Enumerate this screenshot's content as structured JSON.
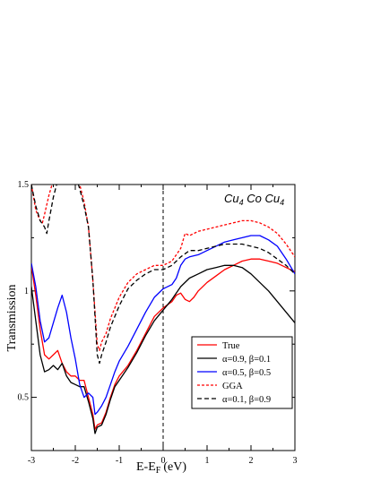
{
  "chart_data": {
    "type": "line",
    "annotation": {
      "base": "Cu",
      "sub1": "4",
      "mid": " Co Cu",
      "sub2": "4"
    },
    "xlabel": {
      "main": "E-E",
      "sub": "F",
      "unit": "(eV)"
    },
    "ylabel": "Transmission",
    "xlim": [
      -3,
      3
    ],
    "ylim": [
      0.25,
      1.5
    ],
    "xticks": [
      -3,
      -2,
      -1,
      0,
      1,
      2,
      3
    ],
    "xtick_labels": [
      "-3",
      "-2",
      "-1",
      "0",
      "1",
      "2",
      "3"
    ],
    "yticks": [
      0.5,
      1,
      1.5
    ],
    "ytick_labels": [
      "0.5",
      "1",
      "1.5"
    ],
    "fermi_line_x": 0,
    "legend_position": "bottom-right",
    "series": [
      {
        "name": "True",
        "color": "#ff0000",
        "dash": "solid",
        "x": [
          -3.0,
          -2.9,
          -2.8,
          -2.7,
          -2.6,
          -2.5,
          -2.4,
          -2.3,
          -2.2,
          -2.1,
          -2.0,
          -1.9,
          -1.8,
          -1.7,
          -1.6,
          -1.55,
          -1.5,
          -1.4,
          -1.3,
          -1.2,
          -1.1,
          -1.0,
          -0.8,
          -0.6,
          -0.4,
          -0.2,
          0.0,
          0.2,
          0.3,
          0.4,
          0.5,
          0.6,
          0.7,
          0.8,
          1.0,
          1.2,
          1.4,
          1.6,
          1.8,
          2.0,
          2.2,
          2.4,
          2.6,
          2.8,
          3.0
        ],
        "y": [
          1.12,
          0.98,
          0.82,
          0.7,
          0.68,
          0.7,
          0.72,
          0.66,
          0.62,
          0.6,
          0.6,
          0.58,
          0.58,
          0.5,
          0.42,
          0.35,
          0.37,
          0.38,
          0.43,
          0.5,
          0.56,
          0.6,
          0.65,
          0.72,
          0.8,
          0.88,
          0.92,
          0.95,
          0.98,
          0.99,
          0.96,
          0.95,
          0.97,
          1.0,
          1.04,
          1.07,
          1.1,
          1.12,
          1.14,
          1.15,
          1.15,
          1.14,
          1.13,
          1.11,
          1.09
        ]
      },
      {
        "name": "α=0.9, β=0.1",
        "color": "#000000",
        "dash": "solid",
        "x": [
          -3.0,
          -2.9,
          -2.8,
          -2.7,
          -2.6,
          -2.5,
          -2.4,
          -2.3,
          -2.2,
          -2.1,
          -2.0,
          -1.9,
          -1.8,
          -1.7,
          -1.6,
          -1.55,
          -1.5,
          -1.4,
          -1.3,
          -1.2,
          -1.1,
          -1.0,
          -0.8,
          -0.6,
          -0.4,
          -0.2,
          0.0,
          0.2,
          0.4,
          0.6,
          0.8,
          1.0,
          1.2,
          1.4,
          1.6,
          1.8,
          2.0,
          2.2,
          2.4,
          2.6,
          2.8,
          3.0
        ],
        "y": [
          1.02,
          0.86,
          0.7,
          0.62,
          0.63,
          0.65,
          0.63,
          0.66,
          0.6,
          0.57,
          0.56,
          0.55,
          0.55,
          0.48,
          0.4,
          0.33,
          0.36,
          0.37,
          0.42,
          0.49,
          0.55,
          0.58,
          0.64,
          0.71,
          0.79,
          0.86,
          0.91,
          0.96,
          1.02,
          1.06,
          1.08,
          1.1,
          1.11,
          1.12,
          1.12,
          1.11,
          1.08,
          1.04,
          1.0,
          0.95,
          0.9,
          0.85
        ]
      },
      {
        "name": "α=0.5, β=0.5",
        "color": "#0000ff",
        "dash": "solid",
        "x": [
          -3.0,
          -2.9,
          -2.8,
          -2.7,
          -2.6,
          -2.5,
          -2.4,
          -2.3,
          -2.2,
          -2.1,
          -2.0,
          -1.9,
          -1.8,
          -1.7,
          -1.6,
          -1.55,
          -1.5,
          -1.4,
          -1.3,
          -1.2,
          -1.1,
          -1.0,
          -0.8,
          -0.6,
          -0.4,
          -0.2,
          0.0,
          0.2,
          0.3,
          0.4,
          0.5,
          0.6,
          0.8,
          1.0,
          1.2,
          1.4,
          1.6,
          1.8,
          2.0,
          2.2,
          2.4,
          2.6,
          2.8,
          3.0
        ],
        "y": [
          1.13,
          1.02,
          0.86,
          0.76,
          0.78,
          0.85,
          0.92,
          0.98,
          0.9,
          0.78,
          0.68,
          0.56,
          0.5,
          0.52,
          0.5,
          0.42,
          0.43,
          0.46,
          0.5,
          0.56,
          0.62,
          0.67,
          0.74,
          0.82,
          0.9,
          0.97,
          1.01,
          1.03,
          1.06,
          1.12,
          1.15,
          1.16,
          1.17,
          1.19,
          1.21,
          1.23,
          1.24,
          1.25,
          1.26,
          1.26,
          1.24,
          1.21,
          1.15,
          1.08
        ]
      },
      {
        "name": "GGA",
        "color": "#ff0000",
        "dash": "dashed",
        "x": [
          -3.0,
          -2.9,
          -2.8,
          -2.75,
          -2.7,
          -2.6,
          -2.5,
          -2.4,
          -2.2,
          -2.0,
          -1.9,
          -1.8,
          -1.7,
          -1.6,
          -1.5,
          -1.45,
          -1.4,
          -1.3,
          -1.2,
          -1.0,
          -0.8,
          -0.6,
          -0.4,
          -0.2,
          0.0,
          0.2,
          0.4,
          0.5,
          0.6,
          0.8,
          1.0,
          1.2,
          1.4,
          1.6,
          1.8,
          2.0,
          2.2,
          2.4,
          2.6,
          2.8,
          3.0
        ],
        "y": [
          1.5,
          1.38,
          1.33,
          1.32,
          1.36,
          1.45,
          1.52,
          1.55,
          1.56,
          1.56,
          1.5,
          1.42,
          1.3,
          1.05,
          0.75,
          0.72,
          0.76,
          0.8,
          0.87,
          0.97,
          1.04,
          1.08,
          1.1,
          1.12,
          1.12,
          1.14,
          1.2,
          1.27,
          1.26,
          1.28,
          1.29,
          1.3,
          1.31,
          1.32,
          1.33,
          1.33,
          1.32,
          1.3,
          1.27,
          1.22,
          1.16
        ]
      },
      {
        "name": "α=0.1, β=0.9",
        "color": "#000000",
        "dash": "dashed",
        "x": [
          -3.0,
          -2.9,
          -2.8,
          -2.7,
          -2.65,
          -2.6,
          -2.5,
          -2.4,
          -2.2,
          -2.0,
          -1.9,
          -1.8,
          -1.7,
          -1.6,
          -1.5,
          -1.45,
          -1.4,
          -1.3,
          -1.2,
          -1.0,
          -0.8,
          -0.6,
          -0.4,
          -0.2,
          0.0,
          0.2,
          0.4,
          0.6,
          0.8,
          1.0,
          1.2,
          1.4,
          1.6,
          1.8,
          2.0,
          2.2,
          2.4,
          2.6,
          2.8,
          3.0
        ],
        "y": [
          1.5,
          1.4,
          1.33,
          1.3,
          1.27,
          1.33,
          1.44,
          1.52,
          1.55,
          1.55,
          1.48,
          1.4,
          1.3,
          1.05,
          0.7,
          0.66,
          0.7,
          0.76,
          0.83,
          0.93,
          1.01,
          1.05,
          1.08,
          1.1,
          1.1,
          1.12,
          1.16,
          1.19,
          1.19,
          1.2,
          1.21,
          1.22,
          1.22,
          1.22,
          1.21,
          1.2,
          1.18,
          1.15,
          1.12,
          1.08
        ]
      }
    ]
  }
}
